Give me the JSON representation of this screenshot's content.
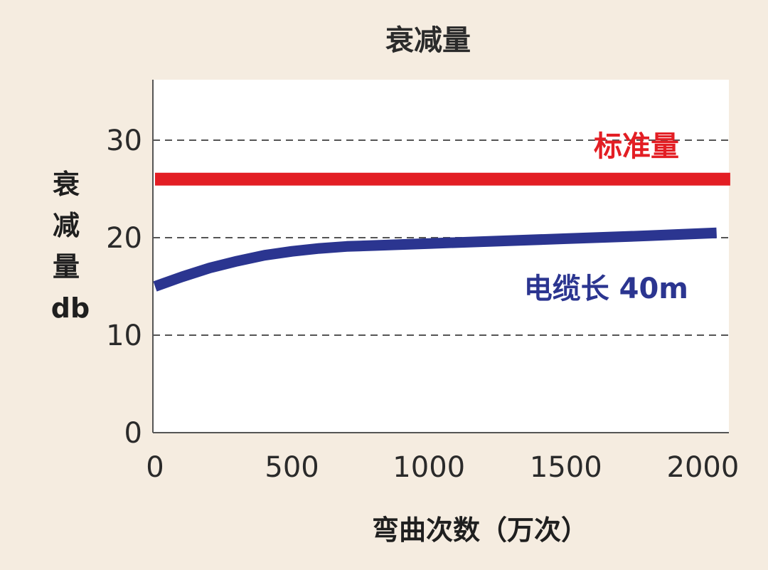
{
  "chart_data": {
    "type": "line",
    "title": "衰减量",
    "ylabel_lines": [
      "衰",
      "减",
      "量",
      "db"
    ],
    "xlabel": "弯曲次数（万次）",
    "xlim": [
      0,
      2100
    ],
    "ylim": [
      0,
      35
    ],
    "x_ticks": [
      0,
      500,
      1000,
      1500,
      2000
    ],
    "y_ticks": [
      0,
      10,
      20,
      30
    ],
    "grid": "dashed horizontal at 10, 20, 30",
    "series": [
      {
        "name": "标准量",
        "color": "#e31e24",
        "x": [
          0,
          2100
        ],
        "y": [
          26,
          26
        ]
      },
      {
        "name": "电缆长 40m",
        "color": "#2b3590",
        "x": [
          0,
          100,
          200,
          300,
          400,
          500,
          600,
          700,
          800,
          1000,
          1200,
          1500,
          1800,
          2050
        ],
        "y": [
          15.0,
          16.0,
          16.9,
          17.6,
          18.2,
          18.6,
          18.9,
          19.1,
          19.2,
          19.4,
          19.6,
          19.9,
          20.2,
          20.5
        ]
      }
    ],
    "annotations": [
      "标准量",
      "电缆长 40m"
    ]
  }
}
